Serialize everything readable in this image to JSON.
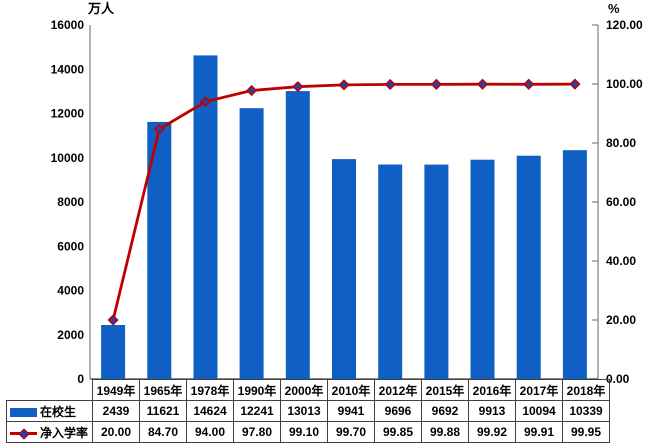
{
  "chart_data": {
    "type": "combo-bar-line",
    "title": "",
    "categories": [
      "1949年",
      "1965年",
      "1978年",
      "1990年",
      "2000年",
      "2010年",
      "2012年",
      "2015年",
      "2016年",
      "2017年",
      "2018年"
    ],
    "series": [
      {
        "name": "在校生",
        "type": "bar",
        "axis": "left",
        "value_decimals": 0,
        "values": [
          2439,
          11621,
          14624,
          12241,
          13013,
          9941,
          9696,
          9692,
          9913,
          10094,
          10339
        ]
      },
      {
        "name": "净入学率",
        "type": "line",
        "axis": "right",
        "value_decimals": 2,
        "values": [
          20.0,
          84.7,
          94.0,
          97.8,
          99.1,
          99.7,
          99.85,
          99.88,
          99.92,
          99.91,
          99.95
        ]
      }
    ],
    "left_axis": {
      "title": "万人",
      "min": 0,
      "max": 16000,
      "step": 2000
    },
    "right_axis": {
      "title": "%",
      "min": 0,
      "max": 120,
      "step": 20,
      "decimals": 2
    },
    "grid": false,
    "legend_position": "table-left",
    "colors": {
      "bar": "#0f5fc4",
      "line": "#c00000",
      "marker_fill": "#2a3f9f",
      "marker_edge": "#c00000",
      "axis": "#7f7f7f",
      "table_border": "#404040",
      "text": "#000000",
      "background": "#ffffff"
    }
  }
}
